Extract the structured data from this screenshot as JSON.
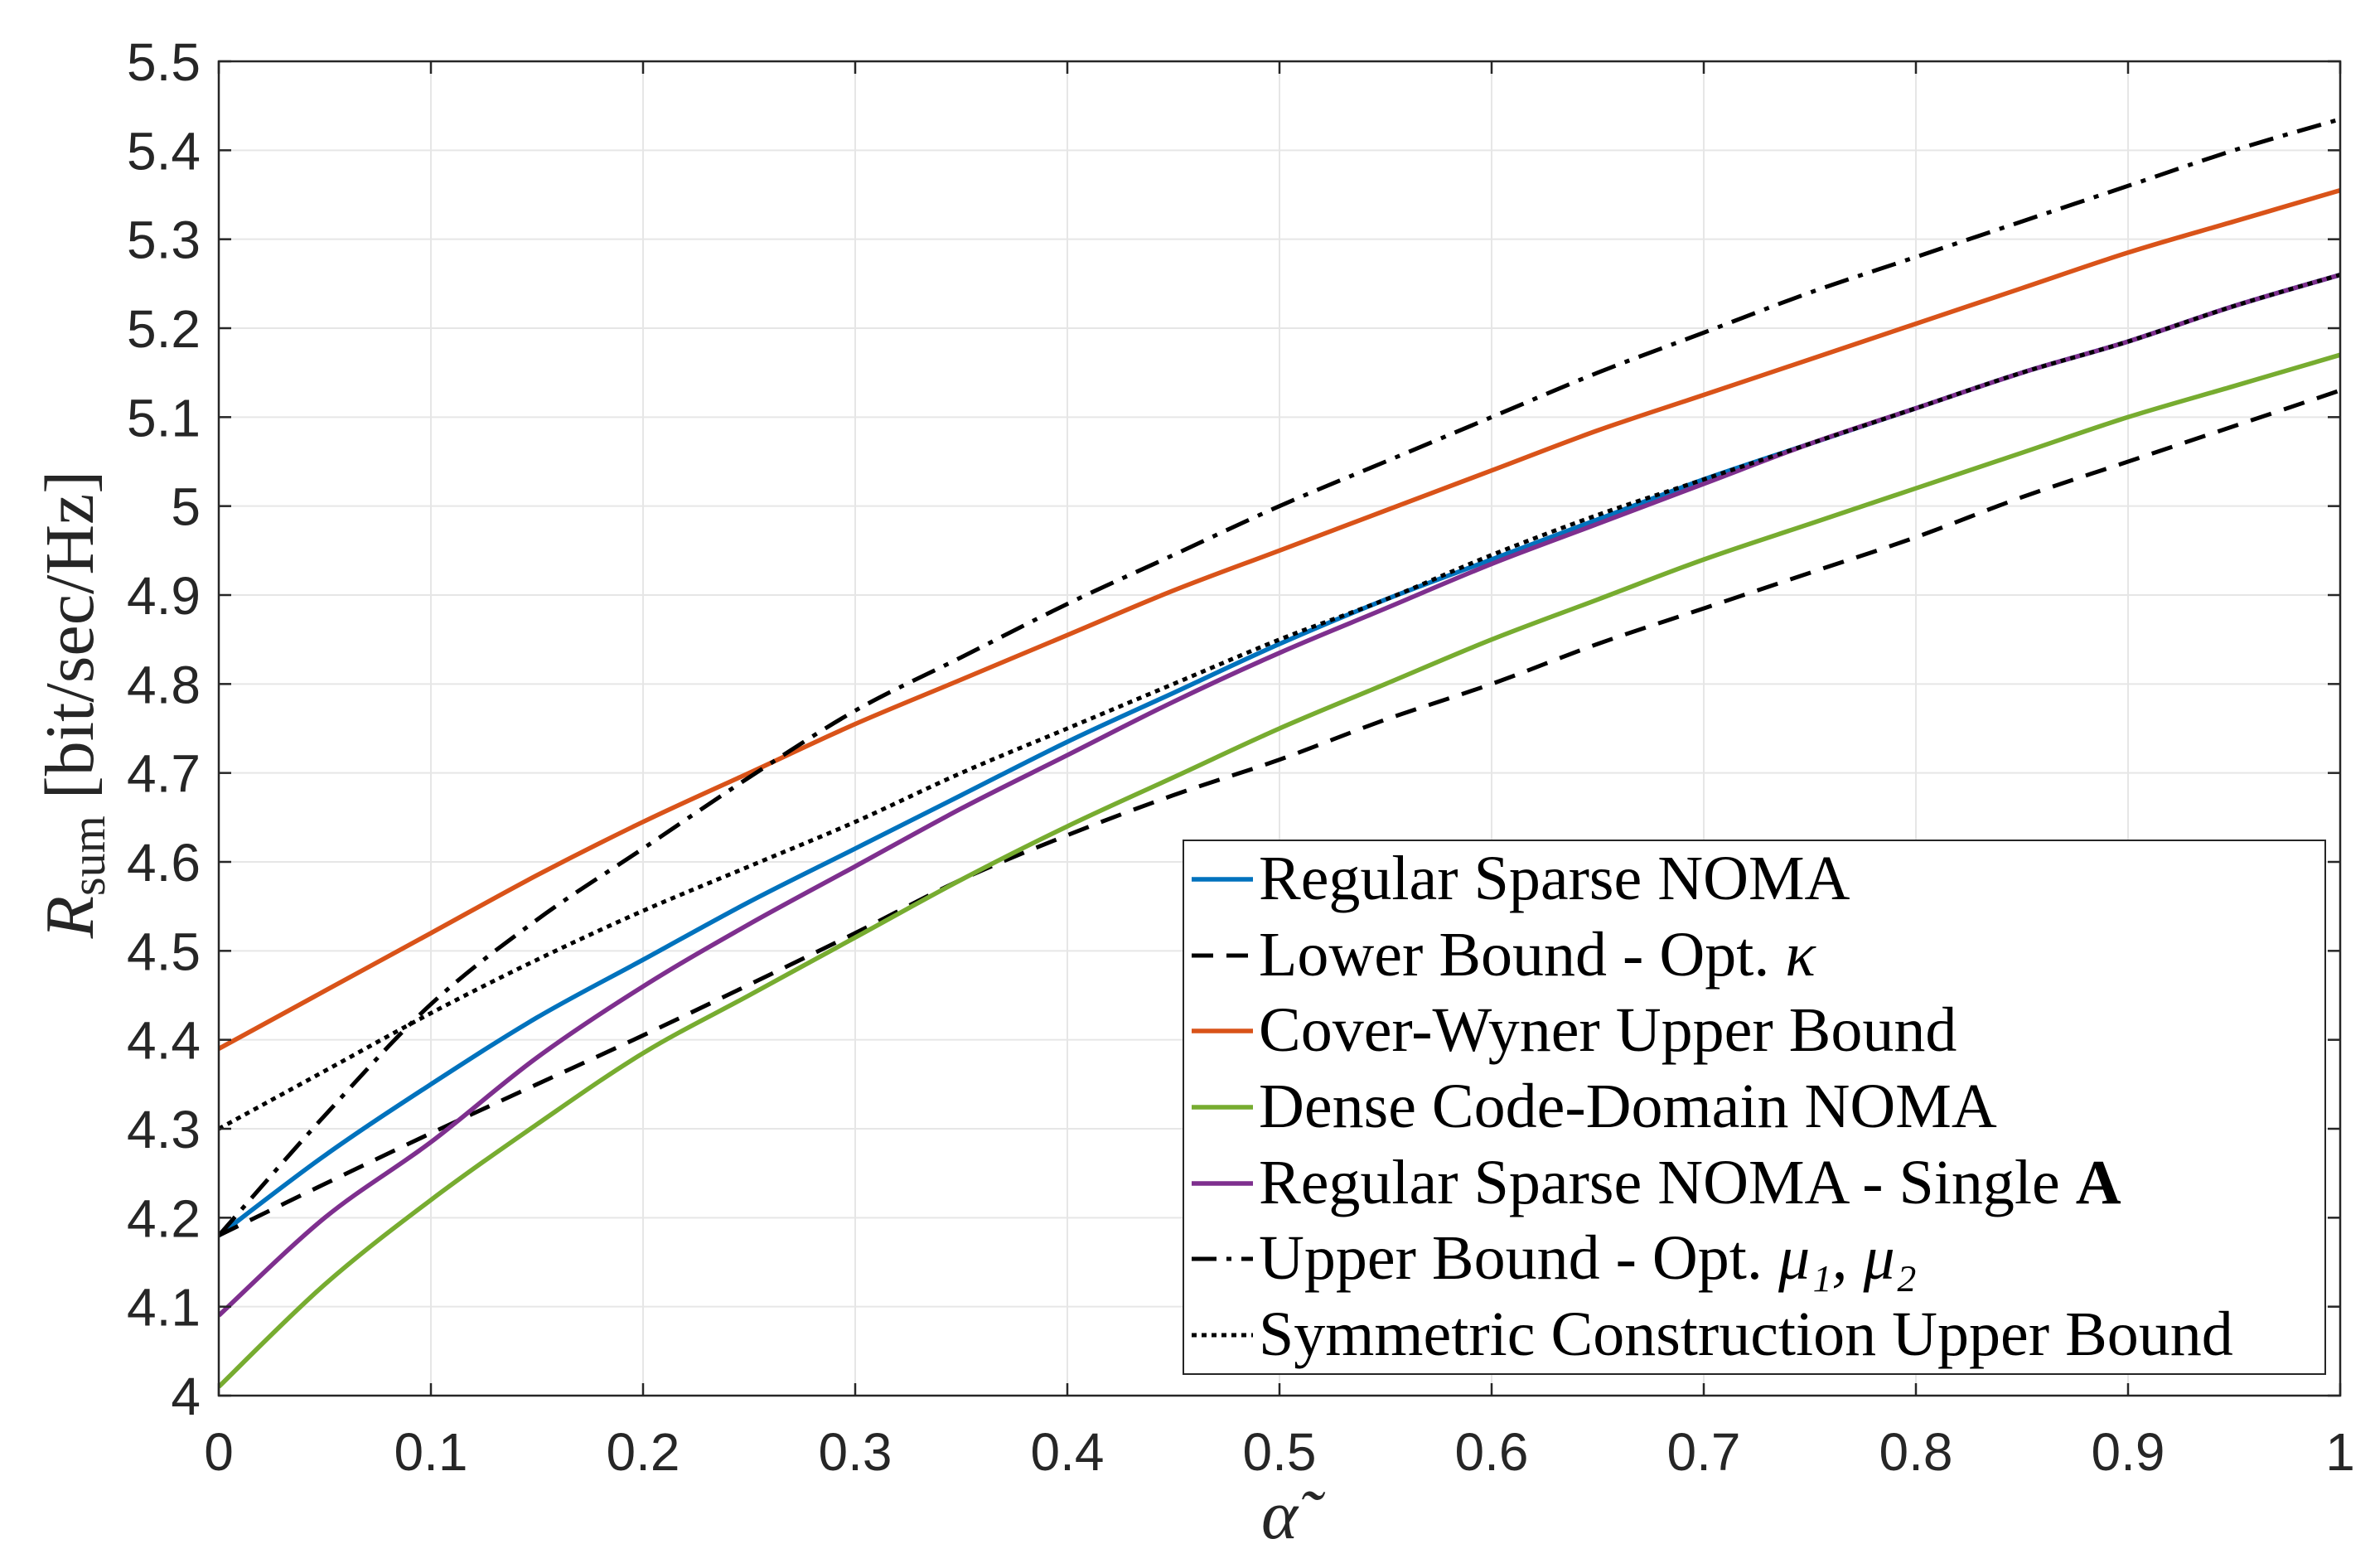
{
  "chart_data": {
    "type": "line",
    "xlabel": "α̃",
    "ylabel": {
      "symbol": "R",
      "subscript": "sum",
      "unit": "[bit/sec/Hz]"
    },
    "xlim": [
      0,
      1
    ],
    "ylim": [
      4,
      5.5
    ],
    "grid": true,
    "legend_position": "bottom-right",
    "x_ticks": [
      0,
      0.1,
      0.2,
      0.3,
      0.4,
      0.5,
      0.6,
      0.7,
      0.8,
      0.9,
      1
    ],
    "x_tick_labels": [
      "0",
      "0.1",
      "0.2",
      "0.3",
      "0.4",
      "0.5",
      "0.6",
      "0.7",
      "0.8",
      "0.9",
      "1"
    ],
    "y_ticks": [
      4,
      4.1,
      4.2,
      4.3,
      4.4,
      4.5,
      4.6,
      4.7,
      4.8,
      4.9,
      5,
      5.1,
      5.2,
      5.3,
      5.4,
      5.5
    ],
    "y_tick_labels": [
      "4",
      "4.1",
      "4.2",
      "4.3",
      "4.4",
      "4.5",
      "4.6",
      "4.7",
      "4.8",
      "4.9",
      "5",
      "5.1",
      "5.2",
      "5.3",
      "5.4",
      "5.5"
    ],
    "x": [
      0,
      0.05,
      0.1,
      0.15,
      0.2,
      0.25,
      0.3,
      0.35,
      0.4,
      0.45,
      0.5,
      0.55,
      0.6,
      0.65,
      0.7,
      0.75,
      0.8,
      0.85,
      0.9,
      0.95,
      1
    ],
    "series": [
      {
        "name": "Regular Sparse NOMA",
        "name_math": "",
        "color": "#0072BD",
        "style": "solid",
        "values": [
          4.18,
          4.27,
          4.35,
          4.425,
          4.49,
          4.555,
          4.615,
          4.675,
          4.735,
          4.79,
          4.845,
          4.895,
          4.94,
          4.985,
          5.03,
          5.07,
          5.11,
          5.15,
          5.185,
          5.225,
          5.26
        ]
      },
      {
        "name": "Lower Bound - Opt.",
        "name_math": "κ",
        "color": "#000000",
        "style": "dashed",
        "values": [
          4.18,
          4.238,
          4.295,
          4.35,
          4.405,
          4.462,
          4.52,
          4.58,
          4.63,
          4.675,
          4.715,
          4.76,
          4.8,
          4.845,
          4.885,
          4.925,
          4.965,
          5.01,
          5.05,
          5.09,
          5.13
        ]
      },
      {
        "name": "Cover-Wyner Upper Bound",
        "name_math": "",
        "color": "#D95319",
        "style": "solid",
        "values": [
          4.39,
          4.455,
          4.52,
          4.585,
          4.645,
          4.7,
          4.755,
          4.805,
          4.855,
          4.905,
          4.95,
          4.995,
          5.04,
          5.085,
          5.125,
          5.165,
          5.205,
          5.245,
          5.285,
          5.32,
          5.355
        ]
      },
      {
        "name": "Dense Code-Domain NOMA",
        "name_math": "",
        "color": "#77AC30",
        "style": "solid",
        "values": [
          4.01,
          4.125,
          4.22,
          4.305,
          4.385,
          4.45,
          4.515,
          4.58,
          4.64,
          4.695,
          4.75,
          4.8,
          4.85,
          4.895,
          4.94,
          4.98,
          5.02,
          5.06,
          5.1,
          5.135,
          5.17
        ]
      },
      {
        "name": "Regular Sparse NOMA - Single",
        "name_math": "A",
        "color": "#7E2F8E",
        "style": "solid",
        "values": [
          4.09,
          4.2,
          4.285,
          4.38,
          4.46,
          4.53,
          4.595,
          4.66,
          4.72,
          4.78,
          4.835,
          4.885,
          4.935,
          4.98,
          5.025,
          5.07,
          5.11,
          5.15,
          5.185,
          5.225,
          5.26
        ]
      },
      {
        "name": "Upper Bound - Opt.",
        "name_math": "μ₁, μ₂",
        "color": "#000000",
        "style": "dash-dot",
        "values": [
          4.18,
          4.315,
          4.44,
          4.535,
          4.615,
          4.695,
          4.77,
          4.83,
          4.89,
          4.945,
          5.0,
          5.05,
          5.1,
          5.15,
          5.195,
          5.24,
          5.28,
          5.32,
          5.36,
          5.4,
          5.435
        ]
      },
      {
        "name": "Symmetric Construction Upper Bound",
        "name_math": "",
        "color": "#000000",
        "style": "dotted",
        "values": [
          4.3,
          4.365,
          4.43,
          4.49,
          4.545,
          4.595,
          4.645,
          4.7,
          4.75,
          4.8,
          4.85,
          4.895,
          4.945,
          4.99,
          5.03,
          5.07,
          5.11,
          5.15,
          5.185,
          5.225,
          5.26
        ]
      }
    ]
  }
}
